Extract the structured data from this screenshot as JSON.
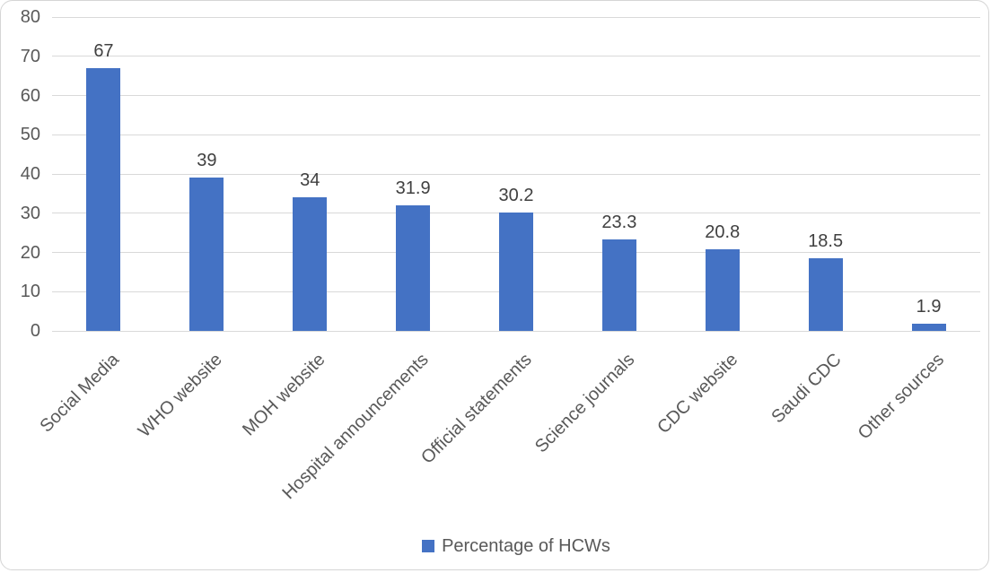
{
  "chart_data": {
    "type": "bar",
    "categories": [
      "Social Media",
      "WHO website",
      "MOH website",
      "Hospital announcements",
      "Official statements",
      "Science journals",
      "CDC website",
      "Saudi CDC",
      "Other sources"
    ],
    "values": [
      67,
      39,
      34,
      31.9,
      30.2,
      23.3,
      20.8,
      18.5,
      1.9
    ],
    "data_labels": [
      "67",
      "39",
      "34",
      "31.9",
      "30.2",
      "23.3",
      "20.8",
      "18.5",
      "1.9"
    ],
    "title": "",
    "xlabel": "",
    "ylabel": "",
    "ylim": [
      0,
      80
    ],
    "yticks": [
      0,
      10,
      20,
      30,
      40,
      50,
      60,
      70,
      80
    ],
    "grid": true,
    "legend": {
      "label": "Percentage of HCWs",
      "position": "bottom-center",
      "swatch_color": "#4472C4"
    },
    "bar_color": "#4472C4",
    "category_label_rotation_deg": -45
  },
  "colors": {
    "bar": "#4472C4",
    "gridline": "#D9D9D9",
    "axis_text": "#595959",
    "data_label_text": "#404040",
    "frame_border": "#D5D5D5",
    "background": "#FFFFFF"
  }
}
